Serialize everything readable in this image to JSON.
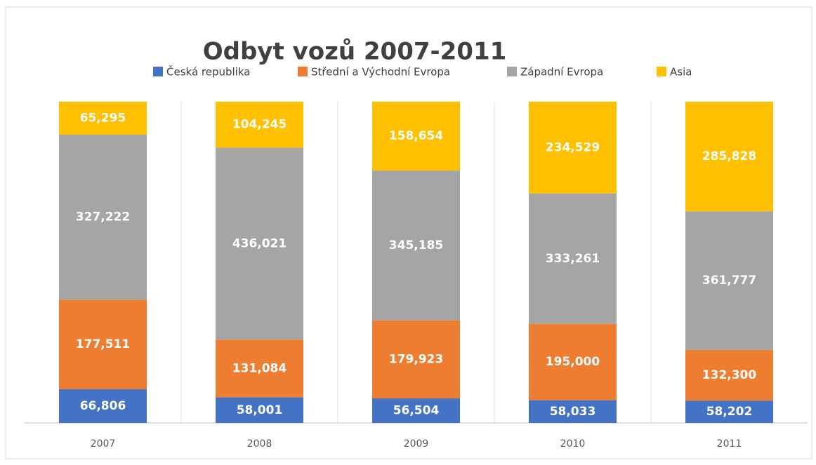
{
  "chart_data": {
    "type": "bar",
    "stacked": "percent",
    "title": "Odbyt vozů 2007-2011",
    "categories": [
      "2007",
      "2008",
      "2009",
      "2010",
      "2011"
    ],
    "series": [
      {
        "name": "Česká republika",
        "color": "#4472c4",
        "values": [
          66806,
          58001,
          56504,
          58033,
          58202
        ],
        "value_labels": [
          "66,806",
          "58,001",
          "56,504",
          "58,033",
          "58,202"
        ]
      },
      {
        "name": "Střední a Východní Evropa",
        "color": "#ed7d31",
        "values": [
          177511,
          131084,
          179923,
          195000,
          132300
        ],
        "value_labels": [
          "177,511",
          "131,084",
          "179,923",
          "195,000",
          "132,300"
        ]
      },
      {
        "name": "Západní Evropa",
        "color": "#a5a5a5",
        "values": [
          327222,
          436021,
          345185,
          333261,
          361777
        ],
        "value_labels": [
          "327,222",
          "436,021",
          "345,185",
          "333,261",
          "361,777"
        ]
      },
      {
        "name": "Asia",
        "color": "#ffc000",
        "values": [
          65295,
          104245,
          158654,
          234529,
          285828
        ],
        "value_labels": [
          "65,295",
          "104,245",
          "158,654",
          "234,529",
          "285,828"
        ]
      }
    ],
    "legend": "top"
  }
}
